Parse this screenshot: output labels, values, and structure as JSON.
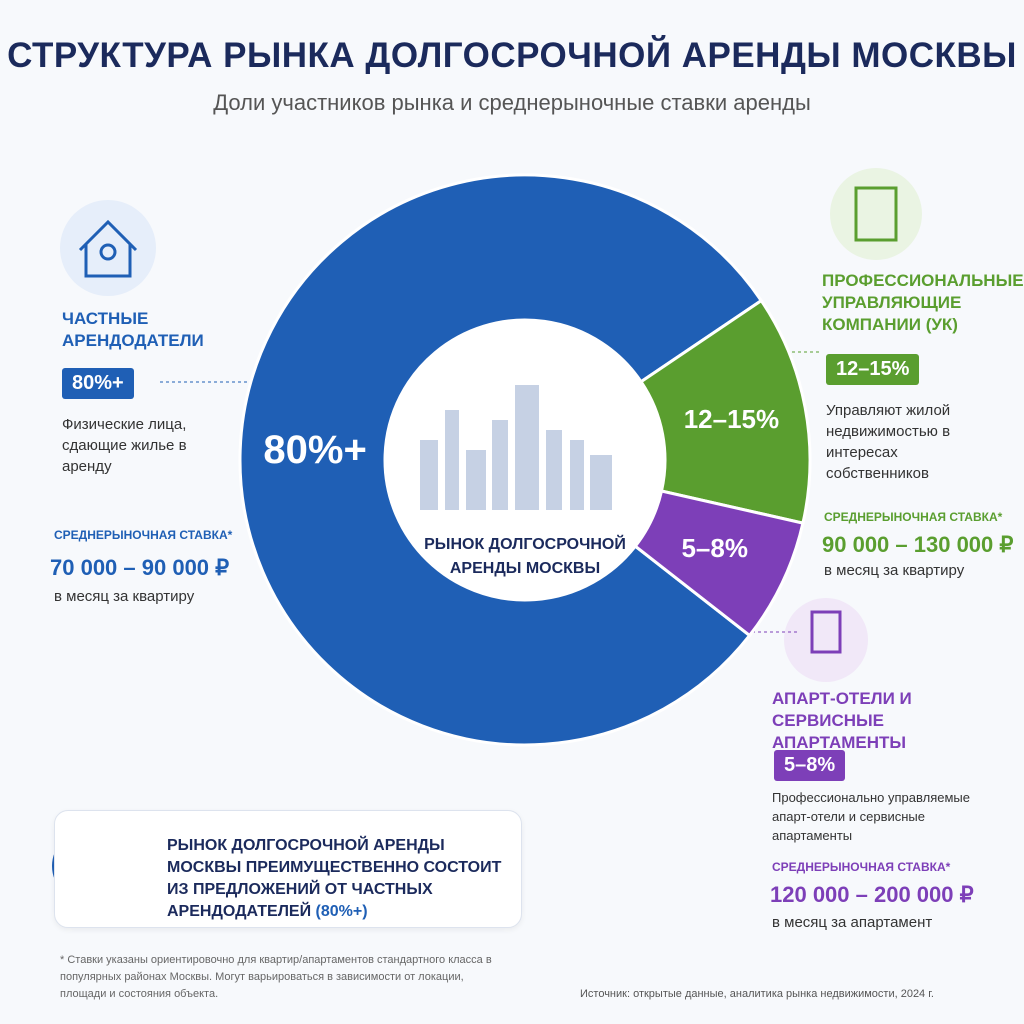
{
  "chart_data": {
    "type": "pie",
    "title": "СТРУКТУРА РЫНКА ДОЛГОСРОЧНОЙ АРЕНДЫ МОСКВЫ",
    "subtitle": "Доли участников рынка и среднерыночные ставки аренды",
    "center_label": "РЫНОК ДОЛГОСРОЧНОЙ АРЕНДЫ МОСКВЫ",
    "categories": [
      "ЧАСТНЫЕ АРЕНДОДАТЕЛИ",
      "ПРОФЕССИОНАЛЬНЫЕ УПРАВЛЯЮЩИЕ КОМПАНИИ (УК)",
      "АПАРТ-ОТЕЛИ И СЕРВИСНЫЕ АПАРТАМЕНТЫ"
    ],
    "values": [
      80,
      13,
      7
    ],
    "value_labels": [
      "80%+",
      "12–15%",
      "5–8%"
    ],
    "colors": [
      "#1f5fb5",
      "#5a9e2f",
      "#7d3fb8"
    ]
  },
  "segments": [
    {
      "description": "Физические лица, сдающие жилье в аренду",
      "rate_label": "СРЕДНЕРЫНОЧНАЯ СТАВКА*",
      "rate": "70 000 – 90 000 ₽",
      "rate_unit": "в месяц за квартиру"
    },
    {
      "description": "Управляют жилой недвижимостью в интересах собственников",
      "rate_label": "СРЕДНЕРЫНОЧНАЯ СТАВКА*",
      "rate": "90 000 – 130 000 ₽",
      "rate_unit": "в месяц за квартиру"
    },
    {
      "description": "Профессионально управляемые апарт-отели и сервисные апартаменты",
      "rate_label": "СРЕДНЕРЫНОЧНАЯ СТАВКА*",
      "rate": "120 000 – 200 000 ₽",
      "rate_unit": "в месяц за апартамент"
    }
  ],
  "summary": {
    "text": "РЫНОК ДОЛГОСРОЧНОЙ АРЕНДЫ МОСКВЫ ПРЕИМУЩЕСТВЕННО СОСТОИТ ИЗ ПРЕДЛОЖЕНИЙ ОТ ЧАСТНЫХ АРЕНДОДАТЕЛЕЙ",
    "highlight": "(80%+)"
  },
  "footnote": "* Ставки указаны ориентировочно для квартир/апартаментов стандартного класса в популярных районах Москвы. Могут варьироваться в зависимости от локации, площади и состояния объекта.",
  "source": "Источник: открытые данные, аналитика рынка недвижимости, 2024 г."
}
